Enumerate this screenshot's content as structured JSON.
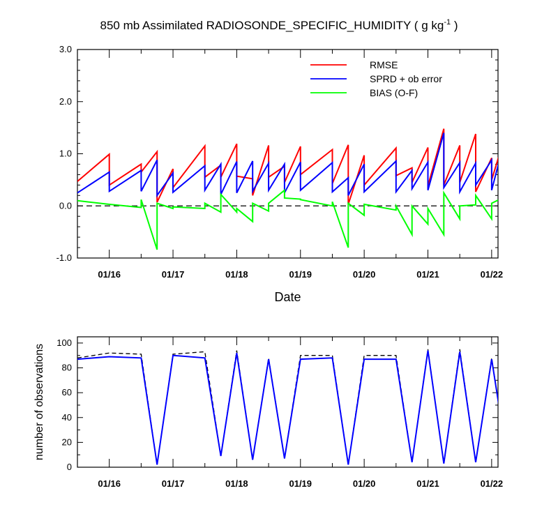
{
  "title": "850 mb Assimilated RADIOSONDE_SPECIFIC_HUMIDITY ( g kg",
  "title_sup": "-1",
  "title_end": " )",
  "chart_data": [
    {
      "type": "line",
      "xlabel": "Date",
      "ylabel": "",
      "ylim": [
        -1.0,
        3.0
      ],
      "yticks": [
        "-1.0",
        "0.0",
        "1.0",
        "2.0",
        "3.0"
      ],
      "xlim": [
        15.5,
        22.1
      ],
      "xticks": [
        {
          "x": 16,
          "label": "01/16"
        },
        {
          "x": 17,
          "label": "01/17"
        },
        {
          "x": 18,
          "label": "01/18"
        },
        {
          "x": 19,
          "label": "01/19"
        },
        {
          "x": 20,
          "label": "01/20"
        },
        {
          "x": 21,
          "label": "01/21"
        },
        {
          "x": 22,
          "label": "01/22"
        }
      ],
      "legend_position": "top-right",
      "reference_line": 0.0,
      "series": [
        {
          "name": "RMSE",
          "color": "#ff0000",
          "x": [
            15.5,
            16.0,
            16.0,
            16.5,
            16.5,
            16.75,
            16.75,
            17.0,
            17.0,
            17.5,
            17.5,
            17.75,
            17.75,
            18.0,
            18.0,
            18.25,
            18.25,
            18.5,
            18.5,
            18.75,
            18.75,
            19.0,
            19.0,
            19.5,
            19.5,
            19.75,
            19.75,
            20.0,
            20.0,
            20.5,
            20.5,
            20.75,
            20.75,
            21.0,
            21.0,
            21.25,
            21.25,
            21.5,
            21.5,
            21.75,
            21.75,
            22.0,
            22.0,
            22.25
          ],
          "y": [
            0.47,
            0.99,
            0.4,
            0.8,
            0.65,
            1.04,
            0.07,
            0.71,
            0.35,
            1.15,
            0.55,
            0.78,
            0.55,
            1.19,
            0.57,
            0.52,
            0.2,
            1.16,
            0.55,
            0.76,
            0.45,
            1.14,
            0.6,
            1.08,
            0.43,
            1.17,
            0.03,
            0.97,
            0.4,
            1.11,
            0.58,
            0.73,
            0.45,
            1.12,
            0.38,
            1.48,
            0.4,
            1.16,
            0.45,
            1.38,
            0.27,
            0.92,
            0.5,
            1.5
          ]
        },
        {
          "name": "SPRD + ob error",
          "color": "#0000ff",
          "x": [
            15.5,
            16.0,
            16.0,
            16.5,
            16.5,
            16.75,
            16.75,
            17.0,
            17.0,
            17.5,
            17.5,
            17.75,
            17.75,
            18.0,
            18.0,
            18.25,
            18.25,
            18.5,
            18.5,
            18.75,
            18.75,
            19.0,
            19.0,
            19.5,
            19.5,
            19.75,
            19.75,
            20.0,
            20.0,
            20.5,
            20.5,
            20.75,
            20.75,
            21.0,
            21.0,
            21.25,
            21.25,
            21.5,
            21.5,
            21.75,
            21.75,
            22.0,
            22.0,
            22.25
          ],
          "y": [
            0.25,
            0.65,
            0.28,
            0.68,
            0.28,
            0.88,
            0.2,
            0.63,
            0.26,
            0.77,
            0.3,
            0.8,
            0.22,
            0.85,
            0.25,
            0.86,
            0.28,
            0.82,
            0.3,
            0.8,
            0.25,
            0.84,
            0.3,
            0.83,
            0.27,
            0.54,
            0.2,
            0.8,
            0.27,
            0.86,
            0.27,
            0.68,
            0.33,
            0.84,
            0.3,
            1.4,
            0.35,
            0.83,
            0.27,
            0.82,
            0.4,
            0.88,
            0.3,
            1.48
          ]
        },
        {
          "name": "BIAS (O-F)",
          "color": "#00ff00",
          "x": [
            15.5,
            16.0,
            16.0,
            16.5,
            16.5,
            16.75,
            16.75,
            17.0,
            17.0,
            17.5,
            17.5,
            17.75,
            17.75,
            18.0,
            18.0,
            18.25,
            18.25,
            18.5,
            18.5,
            18.75,
            18.75,
            19.0,
            19.0,
            19.5,
            19.5,
            19.75,
            19.75,
            20.0,
            20.0,
            20.5,
            20.5,
            20.75,
            20.75,
            21.0,
            21.0,
            21.25,
            21.25,
            21.5,
            21.5,
            21.75,
            21.75,
            22.0,
            22.0,
            22.25
          ],
          "y": [
            0.1,
            0.03,
            0.03,
            -0.03,
            0.12,
            -0.84,
            0.05,
            -0.05,
            -0.02,
            -0.05,
            0.05,
            -0.12,
            0.22,
            -0.12,
            -0.05,
            -0.3,
            0.05,
            -0.1,
            0.05,
            0.3,
            0.15,
            0.13,
            0.12,
            0.0,
            0.08,
            -0.8,
            0.05,
            -0.18,
            0.03,
            -0.08,
            0.0,
            -0.55,
            0.0,
            -0.35,
            -0.05,
            -0.55,
            0.25,
            -0.25,
            0.0,
            0.02,
            0.2,
            -0.25,
            0.05,
            0.2
          ]
        }
      ]
    },
    {
      "type": "line",
      "xlabel": "",
      "ylabel": "number of observations",
      "ylim": [
        0,
        105
      ],
      "yticks": [
        "0",
        "20",
        "40",
        "60",
        "80",
        "100"
      ],
      "xlim": [
        15.5,
        22.1
      ],
      "xticks": [
        {
          "x": 16,
          "label": "01/16"
        },
        {
          "x": 17,
          "label": "01/17"
        },
        {
          "x": 18,
          "label": "01/18"
        },
        {
          "x": 19,
          "label": "01/19"
        },
        {
          "x": 20,
          "label": "01/20"
        },
        {
          "x": 21,
          "label": "01/21"
        },
        {
          "x": 22,
          "label": "01/22"
        }
      ],
      "series": [
        {
          "style": "dashed",
          "color": "#000000",
          "x": [
            15.5,
            16.0,
            16.5,
            16.75,
            17.0,
            17.5,
            17.75,
            18.0,
            18.25,
            18.5,
            18.75,
            19.0,
            19.5,
            19.75,
            20.0,
            20.5,
            20.75,
            21.0,
            21.25,
            21.5,
            21.75,
            22.0,
            22.25
          ],
          "y": [
            88,
            92,
            91,
            2,
            91,
            93,
            9,
            94,
            6,
            88,
            7,
            90,
            90,
            2,
            90,
            90,
            4,
            95,
            3,
            95,
            4,
            88,
            5
          ]
        },
        {
          "style": "solid",
          "color": "#0000ff",
          "x": [
            15.5,
            16.0,
            16.5,
            16.75,
            17.0,
            17.5,
            17.75,
            18.0,
            18.25,
            18.5,
            18.75,
            19.0,
            19.5,
            19.75,
            20.0,
            20.5,
            20.75,
            21.0,
            21.25,
            21.5,
            21.75,
            22.0,
            22.25
          ],
          "y": [
            87,
            89,
            88,
            2,
            90,
            88,
            9,
            92,
            6,
            87,
            7,
            87,
            88,
            2,
            87,
            87,
            4,
            94,
            3,
            93,
            4,
            87,
            5
          ]
        }
      ]
    }
  ]
}
